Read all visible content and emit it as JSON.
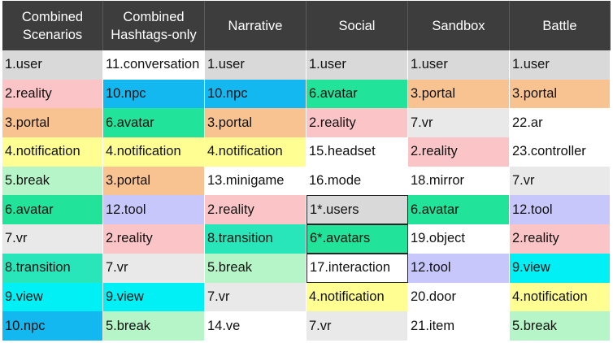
{
  "headers": [
    {
      "label": "Combined\nScenarios"
    },
    {
      "label": "Combined\nHashtags-only"
    },
    {
      "label": "Narrative"
    },
    {
      "label": "Social"
    },
    {
      "label": "Sandbox"
    },
    {
      "label": "Battle"
    }
  ],
  "colors": {
    "user": "#d9d9d9",
    "reality": "#fbc5c8",
    "portal": "#f8c391",
    "notification": "#fffe92",
    "break": "#b5f5c7",
    "avatar": "#22e39a",
    "vr": "#e9e9e9",
    "transition": "#28e6b9",
    "view": "#00f0f5",
    "npc": "#13b8f0",
    "tool": "#c7c7fb",
    "white": "#ffffff"
  },
  "columns": [
    {
      "name": "Combined Scenarios",
      "cells": [
        {
          "text": "1.user",
          "color": "user"
        },
        {
          "text": "2.reality",
          "color": "reality"
        },
        {
          "text": "3.portal",
          "color": "portal"
        },
        {
          "text": "4.notification",
          "color": "notification"
        },
        {
          "text": "5.break",
          "color": "break"
        },
        {
          "text": "6.avatar",
          "color": "avatar"
        },
        {
          "text": "7.vr",
          "color": "vr"
        },
        {
          "text": "8.transition",
          "color": "transition"
        },
        {
          "text": "9.view",
          "color": "view"
        },
        {
          "text": "10.npc",
          "color": "npc"
        }
      ]
    },
    {
      "name": "Combined Hashtags-only",
      "cells": [
        {
          "text": "11.conversation",
          "color": "white"
        },
        {
          "text": "10.npc",
          "color": "npc"
        },
        {
          "text": "6.avatar",
          "color": "avatar"
        },
        {
          "text": "4.notification",
          "color": "notification"
        },
        {
          "text": "3.portal",
          "color": "portal"
        },
        {
          "text": "12.tool",
          "color": "tool"
        },
        {
          "text": "2.reality",
          "color": "reality"
        },
        {
          "text": "7.vr",
          "color": "vr"
        },
        {
          "text": "9.view",
          "color": "view"
        },
        {
          "text": "5.break",
          "color": "break"
        }
      ]
    },
    {
      "name": "Narrative",
      "cells": [
        {
          "text": "1.user",
          "color": "user"
        },
        {
          "text": "10.npc",
          "color": "npc"
        },
        {
          "text": "3.portal",
          "color": "portal"
        },
        {
          "text": "4.notification",
          "color": "notification"
        },
        {
          "text": "13.minigame",
          "color": "white"
        },
        {
          "text": "2.reality",
          "color": "reality"
        },
        {
          "text": "8.transition",
          "color": "transition"
        },
        {
          "text": "5.break",
          "color": "break"
        },
        {
          "text": "7.vr",
          "color": "vr"
        },
        {
          "text": "14.ve",
          "color": "white"
        }
      ]
    },
    {
      "name": "Social",
      "cells": [
        {
          "text": "1.user",
          "color": "user"
        },
        {
          "text": "6.avatar",
          "color": "avatar"
        },
        {
          "text": "2.reality",
          "color": "reality"
        },
        {
          "text": "15.headset",
          "color": "white"
        },
        {
          "text": "16.mode",
          "color": "white"
        },
        {
          "text": "1*.users",
          "color": "user",
          "outlined": true
        },
        {
          "text": "6*.avatars",
          "color": "avatar",
          "outlined": true
        },
        {
          "text": "17.interaction",
          "color": "white",
          "outlined": true
        },
        {
          "text": "4.notification",
          "color": "notification"
        },
        {
          "text": "7.vr",
          "color": "vr"
        }
      ]
    },
    {
      "name": "Sandbox",
      "cells": [
        {
          "text": "1.user",
          "color": "user"
        },
        {
          "text": "3.portal",
          "color": "portal"
        },
        {
          "text": "7.vr",
          "color": "vr"
        },
        {
          "text": "2.reality",
          "color": "reality"
        },
        {
          "text": "18.mirror",
          "color": "white"
        },
        {
          "text": "6.avatar",
          "color": "avatar"
        },
        {
          "text": "19.object",
          "color": "white"
        },
        {
          "text": "12.tool",
          "color": "tool"
        },
        {
          "text": "20.door",
          "color": "white"
        },
        {
          "text": "21.item",
          "color": "white"
        }
      ]
    },
    {
      "name": "Battle",
      "cells": [
        {
          "text": "1.user",
          "color": "user"
        },
        {
          "text": "3.portal",
          "color": "portal"
        },
        {
          "text": "22.ar",
          "color": "white"
        },
        {
          "text": "23.controller",
          "color": "white"
        },
        {
          "text": "7.vr",
          "color": "vr"
        },
        {
          "text": "12.tool",
          "color": "tool"
        },
        {
          "text": "2.reality",
          "color": "reality"
        },
        {
          "text": "9.view",
          "color": "view"
        },
        {
          "text": "4.notification",
          "color": "notification"
        },
        {
          "text": "5.break",
          "color": "break"
        }
      ]
    }
  ]
}
